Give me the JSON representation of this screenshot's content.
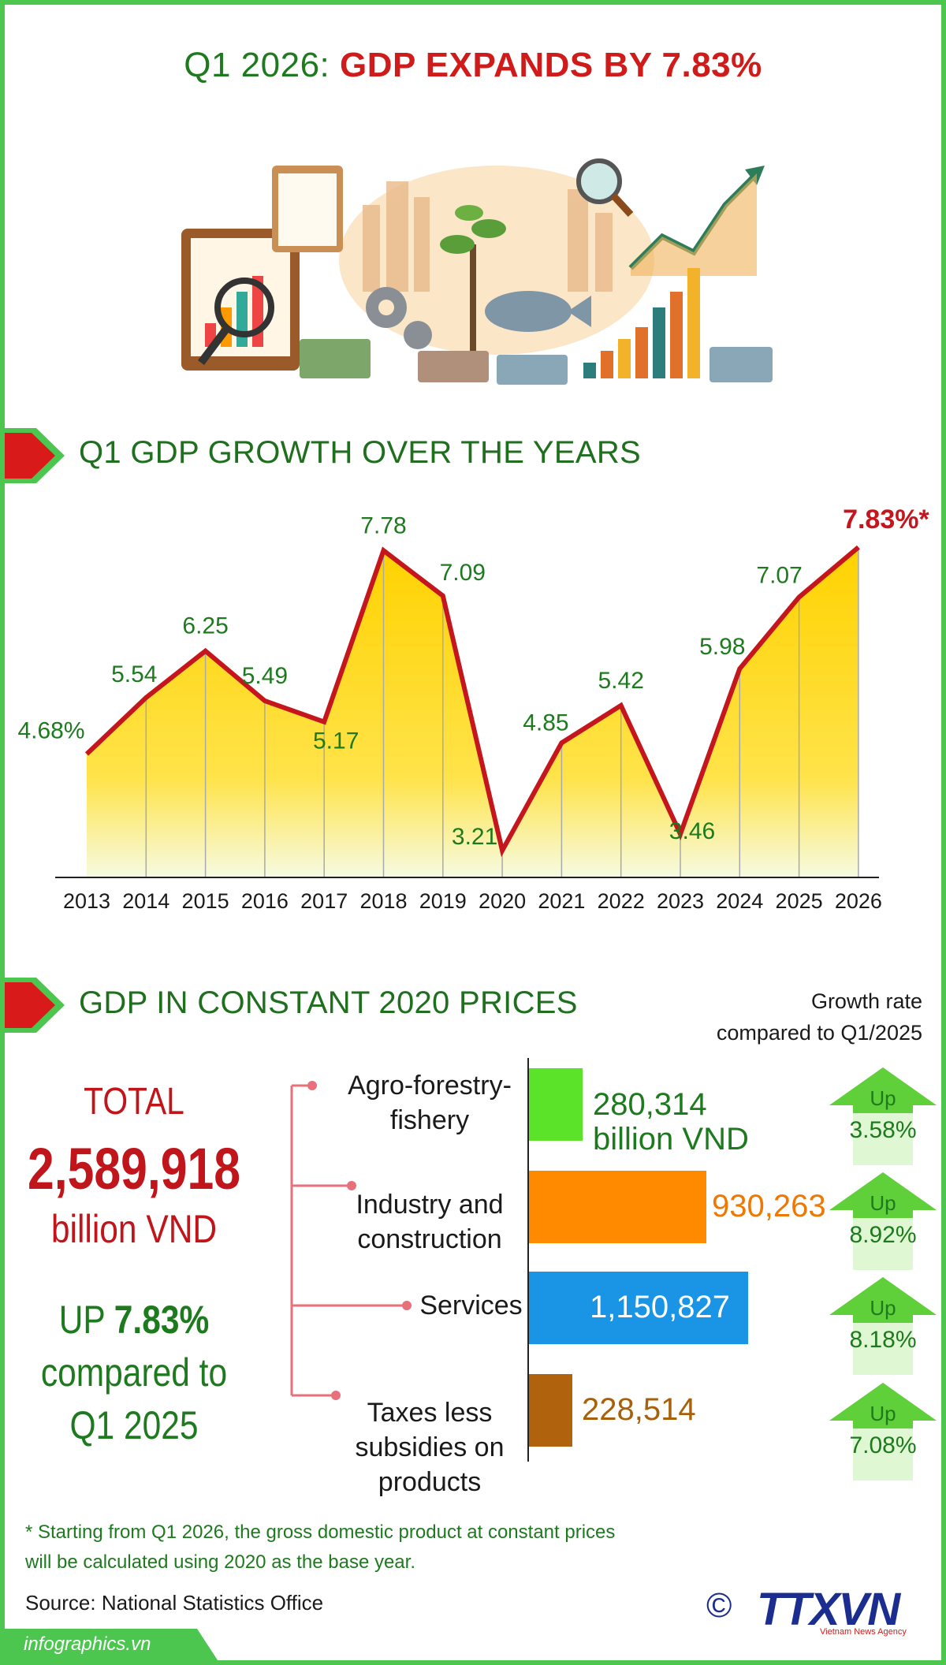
{
  "header": {
    "title_prefix": "Q1 2026: ",
    "title_highlight": "GDP EXPANDS BY 7.83%"
  },
  "section1": {
    "title": "Q1 GDP GROWTH OVER THE YEARS"
  },
  "section2": {
    "title": "GDP IN CONSTANT 2020 PRICES",
    "growth_header_line1": "Growth rate",
    "growth_header_line2": "compared to Q1/2025"
  },
  "totals": {
    "label": "TOTAL",
    "value": "2,589,918",
    "unit": "billion VND",
    "up_word": "UP",
    "up_value": "7.83%",
    "compared_line1": "compared to",
    "compared_line2": "Q1 2025"
  },
  "colors": {
    "accent_green": "#1e7a1e",
    "accent_red": "#c0161b",
    "line_red": "#c4161c",
    "area_yellow": "#ffd400",
    "frame_green": "#4cc64f"
  },
  "chart_data": [
    {
      "type": "area",
      "x": [
        "2013",
        "2014",
        "2015",
        "2016",
        "2017",
        "2018",
        "2019",
        "2020",
        "2021",
        "2022",
        "2023",
        "2024",
        "2025",
        "2026"
      ],
      "values": [
        4.68,
        5.54,
        6.25,
        5.49,
        5.17,
        7.78,
        7.09,
        3.21,
        4.85,
        5.42,
        3.46,
        5.98,
        7.07,
        7.83
      ],
      "data_labels": [
        "4.68%",
        "5.54",
        "6.25",
        "5.49",
        "5.17",
        "7.78",
        "7.09",
        "3.21",
        "4.85",
        "5.42",
        "3.46",
        "5.98",
        "7.07",
        "7.83%*"
      ],
      "ylim": [
        2.8,
        8.0
      ],
      "grid": false,
      "highlight_index": 13
    },
    {
      "type": "bar",
      "orientation": "horizontal",
      "categories": [
        "Agro-forestry-fishery",
        "Industry and construction",
        "Services",
        "Taxes less subsidies on products"
      ],
      "category_lines": [
        [
          "Agro-forestry-",
          "fishery"
        ],
        [
          "Industry and",
          "construction"
        ],
        [
          "Services"
        ],
        [
          "Taxes less",
          "subsidies on",
          "products"
        ]
      ],
      "values": [
        280314,
        930263,
        1150827,
        228514
      ],
      "value_labels": [
        "280,314",
        "930,263",
        "1,150,827",
        "228,514"
      ],
      "unit_label": "billion VND",
      "bar_colors": [
        "#5be32a",
        "#ff8a00",
        "#1a95e6",
        "#b0620c"
      ],
      "label_colors": [
        "#1e7a1e",
        "#f07800",
        "#ffffff",
        "#a8600a"
      ],
      "growth_word": "Up",
      "growth_labels": [
        "3.58%",
        "8.92%",
        "8.18%",
        "7.08%"
      ],
      "growth_values": [
        3.58,
        8.92,
        8.18,
        7.08
      ]
    }
  ],
  "footnote_line1": "* Starting from Q1 2026, the gross domestic product at constant prices",
  "footnote_line2": "will be calculated using 2020 as the base year.",
  "source": "Source: National Statistics Office",
  "brand": "infographics.vn",
  "logo": {
    "copyright_symbol": "©",
    "text": "TTXVN",
    "tagline": "Vietnam News Agency"
  }
}
